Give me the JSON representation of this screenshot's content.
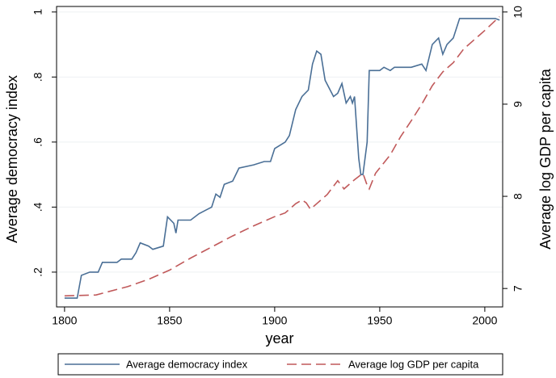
{
  "chart_data": {
    "type": "line",
    "x_label": "year",
    "y_label": "Average democracy index",
    "y2_label": "Average log GDP per capita",
    "xlim": [
      1796.2,
      2008.5
    ],
    "xticks": [
      1800,
      1850,
      1900,
      1950,
      2000
    ],
    "ylim": [
      0.093,
      1.017
    ],
    "yticks": [
      {
        "value": 0.2,
        "label": ".2"
      },
      {
        "value": 0.4,
        "label": ".4"
      },
      {
        "value": 0.6,
        "label": ".6"
      },
      {
        "value": 0.8,
        "label": ".8"
      },
      1
    ],
    "y2lim": [
      6.8,
      10.06
    ],
    "y2ticks": [
      7,
      8,
      9,
      10
    ],
    "grid": true,
    "legend": "bottom",
    "series": [
      {
        "name": "Average democracy index",
        "color": "#4a6f96",
        "dash": "solid",
        "x": [
          1800,
          1806,
          1808,
          1812,
          1816,
          1818,
          1825,
          1827,
          1832,
          1834,
          1836,
          1840,
          1842,
          1847,
          1849,
          1852,
          1853,
          1854,
          1860,
          1864,
          1870,
          1872,
          1874,
          1876,
          1880,
          1883,
          1890,
          1895,
          1898,
          1900,
          1905,
          1907,
          1910,
          1913,
          1916,
          1918,
          1920,
          1922,
          1924,
          1928,
          1930,
          1932,
          1934,
          1936,
          1937,
          1938,
          1940,
          1941,
          1942,
          1944,
          1945,
          1950,
          1952,
          1955,
          1957,
          1965,
          1970,
          1972,
          1975,
          1978,
          1980,
          1982,
          1985,
          1988,
          1995,
          2000,
          2005,
          2007
        ],
        "values": [
          0.12,
          0.12,
          0.19,
          0.2,
          0.2,
          0.23,
          0.23,
          0.24,
          0.24,
          0.26,
          0.29,
          0.28,
          0.27,
          0.28,
          0.37,
          0.35,
          0.32,
          0.36,
          0.36,
          0.38,
          0.4,
          0.44,
          0.43,
          0.47,
          0.48,
          0.52,
          0.53,
          0.54,
          0.54,
          0.58,
          0.6,
          0.62,
          0.7,
          0.74,
          0.76,
          0.84,
          0.88,
          0.87,
          0.79,
          0.74,
          0.75,
          0.78,
          0.72,
          0.74,
          0.72,
          0.74,
          0.55,
          0.5,
          0.5,
          0.6,
          0.82,
          0.82,
          0.83,
          0.82,
          0.83,
          0.83,
          0.84,
          0.82,
          0.9,
          0.92,
          0.87,
          0.9,
          0.92,
          0.98,
          0.98,
          0.98,
          0.98,
          0.975
        ]
      },
      {
        "name": "Average log GDP per capita",
        "color": "#c0595a",
        "dash": "dashed",
        "axis": "y2",
        "x": [
          1800,
          1815,
          1820,
          1830,
          1840,
          1850,
          1860,
          1870,
          1880,
          1890,
          1900,
          1905,
          1910,
          1913,
          1915,
          1917,
          1920,
          1925,
          1930,
          1933,
          1938,
          1942,
          1944,
          1945,
          1948,
          1955,
          1960,
          1965,
          1970,
          1975,
          1980,
          1985,
          1990,
          1995,
          2000,
          2007
        ],
        "values": [
          6.92,
          6.93,
          6.96,
          7.02,
          7.1,
          7.2,
          7.33,
          7.45,
          7.57,
          7.68,
          7.78,
          7.82,
          7.92,
          7.96,
          7.93,
          7.86,
          7.92,
          8.02,
          8.17,
          8.08,
          8.18,
          8.25,
          8.12,
          8.08,
          8.25,
          8.45,
          8.65,
          8.82,
          9.0,
          9.2,
          9.35,
          9.45,
          9.6,
          9.7,
          9.8,
          9.95
        ]
      }
    ]
  }
}
